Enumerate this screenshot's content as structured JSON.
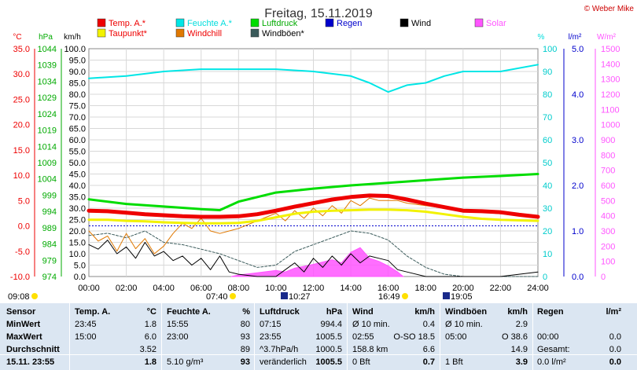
{
  "title": "Freitag, 15.11.2019",
  "credit": "© Weber Mike",
  "colors": {
    "temp": "#ee0000",
    "dew": "#f2f200",
    "humidity": "#00e6e6",
    "windchill": "#e07800",
    "pressure": "#00dd00",
    "gusts": "#3a5a5a",
    "rain": "#0000cc",
    "wind": "#000000",
    "solar": "#ff55ff",
    "table_bg": "#dbe6f2"
  },
  "legend": [
    {
      "label": "Temp. A.*",
      "color": "#ee0000",
      "text_color": "#ee0000"
    },
    {
      "label": "Feuchte A.*",
      "color": "#00e6e6",
      "text_color": "#00dddd"
    },
    {
      "label": "Luftdruck",
      "color": "#00dd00",
      "text_color": "#00aa00"
    },
    {
      "label": "Regen",
      "color": "#0000cc",
      "text_color": "#0000cc"
    },
    {
      "label": "Wind",
      "color": "#000000",
      "text_color": "#000000"
    },
    {
      "label": "Solar",
      "color": "#ff55ff",
      "text_color": "#ff55ff"
    },
    {
      "label": "Taupunkt*",
      "color": "#f2f200",
      "text_color": "#ee0000"
    },
    {
      "label": "Windchill",
      "color": "#e07800",
      "text_color": "#ee0000"
    },
    {
      "label": "Windböen*",
      "color": "#3a5a5a",
      "text_color": "#000000"
    }
  ],
  "axis_units": {
    "temp": "°C",
    "pressure": "hPa",
    "wind": "km/h",
    "humidity": "%",
    "rain": "l/m²",
    "solar": "W/m²"
  },
  "axes": {
    "temp": [
      "35.0",
      "30.0",
      "25.0",
      "20.0",
      "15.0",
      "10.0",
      "5.0",
      "0.0",
      "-5.0",
      "-10.0"
    ],
    "pressure": [
      "1044",
      "1039",
      "1034",
      "1029",
      "1024",
      "1019",
      "1014",
      "1009",
      "1004",
      "999",
      "994",
      "989",
      "984",
      "979",
      "974"
    ],
    "wind": [
      "100.0",
      "95.0",
      "90.0",
      "85.0",
      "80.0",
      "75.0",
      "70.0",
      "65.0",
      "60.0",
      "55.0",
      "50.0",
      "45.0",
      "40.0",
      "35.0",
      "30.0",
      "25.0",
      "20.0",
      "15.0",
      "10.0",
      "5.0",
      "0.0"
    ],
    "humidity": [
      "100",
      "90",
      "80",
      "70",
      "60",
      "50",
      "40",
      "30",
      "20",
      "10",
      "0"
    ],
    "rain": [
      "5.0",
      "4.0",
      "3.0",
      "2.0",
      "1.0",
      "0.0"
    ],
    "solar": [
      "1500",
      "1400",
      "1300",
      "1200",
      "1100",
      "1000",
      "900",
      "800",
      "700",
      "600",
      "500",
      "400",
      "300",
      "200",
      "100",
      "0"
    ]
  },
  "time_ticks": [
    "00:00",
    "02:00",
    "04:00",
    "06:00",
    "08:00",
    "10:00",
    "12:00",
    "14:00",
    "16:00",
    "18:00",
    "20:00",
    "22:00",
    "24:00"
  ],
  "events": {
    "moonrise": "09:08",
    "sunrise": "07:40",
    "moonset": "10:27",
    "sunset": "16:49",
    "moon2": "19:05"
  },
  "chart_data": {
    "type": "line",
    "title": "Freitag, 15.11.2019",
    "x_unit": "hour",
    "x_range": [
      0,
      24
    ],
    "series": [
      {
        "name": "Temp. A.*",
        "axis": "temp",
        "x": [
          0,
          1,
          2,
          3,
          4,
          5,
          6,
          7,
          8,
          9,
          10,
          11,
          12,
          13,
          14,
          15,
          16,
          17,
          18,
          19,
          20,
          21,
          22,
          23,
          24
        ],
        "values": [
          3.0,
          2.9,
          2.6,
          2.3,
          2.1,
          1.9,
          1.8,
          1.8,
          1.9,
          2.3,
          3.0,
          3.8,
          4.5,
          5.2,
          5.7,
          6.0,
          5.9,
          5.2,
          4.4,
          3.7,
          3.0,
          2.9,
          2.7,
          2.2,
          1.8
        ]
      },
      {
        "name": "Taupunkt*",
        "axis": "temp",
        "x": [
          0,
          1,
          2,
          3,
          4,
          5,
          6,
          7,
          8,
          9,
          10,
          11,
          12,
          13,
          14,
          15,
          16,
          17,
          18,
          19,
          20,
          21,
          22,
          23,
          24
        ],
        "values": [
          1.2,
          1.2,
          1.0,
          0.9,
          0.7,
          0.6,
          0.5,
          0.5,
          0.6,
          1.0,
          1.7,
          2.4,
          2.8,
          3.0,
          3.1,
          3.2,
          3.2,
          3.1,
          2.8,
          2.3,
          1.8,
          1.4,
          1.2,
          1.1,
          1.0
        ]
      },
      {
        "name": "Feuchte A.*",
        "axis": "humidity",
        "x": [
          0,
          2,
          4,
          6,
          8,
          10,
          12,
          14,
          15,
          16,
          17,
          18,
          19,
          20,
          22,
          24
        ],
        "values": [
          87,
          88,
          90,
          91,
          91,
          91,
          90,
          88,
          85,
          81,
          84,
          85,
          88,
          90,
          90,
          93
        ]
      },
      {
        "name": "Luftdruck",
        "axis": "pressure",
        "x": [
          0,
          2,
          4,
          6,
          7,
          8,
          10,
          12,
          14,
          16,
          18,
          20,
          22,
          24
        ],
        "values": [
          997.7,
          996.3,
          995.5,
          994.7,
          994.4,
          997.0,
          999.8,
          1001.0,
          1002.0,
          1002.8,
          1003.6,
          1004.4,
          1004.9,
          1005.5
        ]
      },
      {
        "name": "Windchill",
        "axis": "temp",
        "x": [
          0,
          0.5,
          1,
          1.5,
          2,
          2.5,
          3,
          3.5,
          4,
          4.5,
          5,
          5.5,
          6,
          6.5,
          7,
          7.5,
          8,
          9,
          10,
          10.5,
          11,
          11.5,
          12,
          12.5,
          13,
          13.5,
          14,
          14.5,
          15,
          15.5,
          16,
          16.5,
          17,
          18,
          20,
          24
        ],
        "values": [
          -1.0,
          -3.0,
          -2.0,
          -5.0,
          -1.5,
          -4.5,
          -2.5,
          -5.5,
          -4.0,
          -1.5,
          0.5,
          -0.5,
          1.5,
          -1.0,
          -1.5,
          -1.0,
          -0.5,
          1.0,
          2.5,
          1.0,
          3.0,
          1.5,
          3.5,
          2.0,
          4.0,
          2.5,
          5.0,
          4.0,
          5.5,
          5.0,
          5.0,
          5.0,
          4.5,
          4.0,
          3.0,
          1.8
        ]
      },
      {
        "name": "Wind",
        "axis": "wind",
        "x": [
          0,
          0.5,
          1,
          1.5,
          2,
          2.5,
          3,
          3.5,
          4,
          4.5,
          5,
          5.5,
          6,
          6.5,
          7,
          7.5,
          8,
          9,
          10,
          10.5,
          11,
          11.5,
          12,
          12.5,
          13,
          13.5,
          14,
          14.5,
          15,
          15.5,
          16,
          16.5,
          17,
          18,
          19,
          20,
          21,
          22,
          23,
          24
        ],
        "values": [
          14,
          12,
          16,
          10,
          13,
          8,
          15,
          9,
          11,
          7,
          9,
          5,
          8,
          3,
          9,
          2,
          1,
          0,
          0,
          3,
          6,
          2,
          8,
          4,
          9,
          5,
          10,
          6,
          9,
          8,
          7,
          3,
          2,
          0,
          0,
          0,
          0,
          0,
          1,
          2
        ]
      },
      {
        "name": "Windböen*",
        "axis": "wind",
        "x": [
          0,
          1,
          2,
          3,
          4,
          5,
          6,
          7,
          8,
          9,
          10,
          11,
          12,
          13,
          14,
          15,
          16,
          17,
          18,
          19,
          20,
          24
        ],
        "values": [
          18,
          19,
          17,
          20,
          15,
          14,
          12,
          10,
          7,
          4,
          5,
          11,
          14,
          17,
          20,
          19,
          16,
          9,
          4,
          1,
          0,
          0
        ]
      },
      {
        "name": "Solar",
        "axis": "solar",
        "x": [
          7.6,
          8,
          9,
          10,
          10.5,
          11,
          12,
          13,
          13.5,
          14,
          14.5,
          15,
          15.5,
          16,
          16.5,
          16.8
        ],
        "values": [
          0,
          10,
          25,
          40,
          30,
          55,
          80,
          110,
          90,
          160,
          190,
          120,
          100,
          70,
          30,
          0
        ]
      }
    ]
  },
  "table": {
    "headers": [
      "Sensor",
      "Temp. A.",
      "°C",
      "Feuchte A.",
      "%",
      "Luftdruck",
      "hPa",
      "Wind",
      "km/h",
      "Windböen",
      "km/h",
      "Regen",
      "l/m²"
    ],
    "rows": [
      {
        "label": "MinWert",
        "cells": [
          "23:45",
          "1.8",
          "15:55",
          "80",
          "07:15",
          "994.4",
          "Ø 10 min.",
          "0.4",
          "Ø 10 min.",
          "2.9",
          "",
          ""
        ]
      },
      {
        "label": "MaxWert",
        "cells": [
          "15:00",
          "6.0",
          "23:00",
          "93",
          "23:55",
          "1005.5",
          "02:55",
          "O-SO 18.5",
          "05:00",
          "O 38.6",
          "00:00",
          "0.0"
        ]
      },
      {
        "label": "Durchschnitt",
        "cells": [
          "",
          "3.52",
          "",
          "89",
          "^3.7hPa/h",
          "1000.5",
          "158.8 km",
          "6.6",
          "",
          "14.9",
          "Gesamt:",
          "0.0"
        ]
      },
      {
        "label": "15.11. 23:55",
        "cells": [
          "",
          "1.8",
          "5.10 g/m³",
          "93",
          "veränderlich",
          "1005.5",
          "0 Bft",
          "0.7",
          "1 Bft",
          "3.9",
          "0.0 l/m²",
          "0.0"
        ]
      }
    ]
  }
}
